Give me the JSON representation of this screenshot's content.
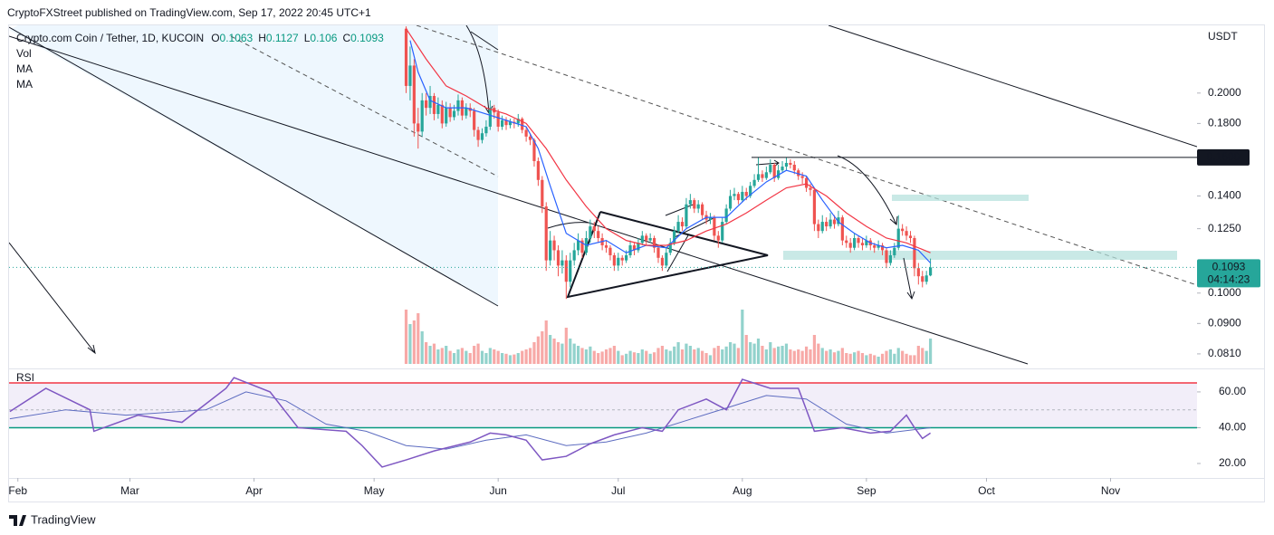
{
  "header": {
    "attribution": "CryptoFXStreet published on TradingView.com, Sep 17, 2022 20:45 UTC+1",
    "footer": "TradingView"
  },
  "chart_data": {
    "type": "candlestick",
    "title": "Crypto.com Coin / Tether, 1D, KUCOIN",
    "ohlc_labels": [
      "O",
      "H",
      "L",
      "C"
    ],
    "currency": "USDT",
    "up_color": "#26a69a",
    "down_color": "#ef5350",
    "open": [
      0.25,
      0.205,
      0.22,
      0.18,
      0.175,
      0.195,
      0.19,
      0.198,
      0.186,
      0.192,
      0.18,
      0.19,
      0.184,
      0.188,
      0.195,
      0.185,
      0.19,
      0.188,
      0.176,
      0.17,
      0.174,
      0.178,
      0.19,
      0.187,
      0.178,
      0.182,
      0.179,
      0.181,
      0.18,
      0.183,
      0.176,
      0.172,
      0.17,
      0.158,
      0.148,
      0.135,
      0.112,
      0.12,
      0.116,
      0.11,
      0.112,
      0.104,
      0.112,
      0.116,
      0.12,
      0.115,
      0.121,
      0.126,
      0.124,
      0.121,
      0.118,
      0.117,
      0.114,
      0.11,
      0.113,
      0.112,
      0.114,
      0.118,
      0.116,
      0.119,
      0.122,
      0.12,
      0.121,
      0.117,
      0.113,
      0.11,
      0.115,
      0.119,
      0.124,
      0.128,
      0.126,
      0.136,
      0.138,
      0.134,
      0.136,
      0.131,
      0.129,
      0.13,
      0.122,
      0.12,
      0.128,
      0.134,
      0.14,
      0.141,
      0.138,
      0.142,
      0.14,
      0.145,
      0.148,
      0.151,
      0.149,
      0.152,
      0.156,
      0.149,
      0.153,
      0.155,
      0.157,
      0.156,
      0.153,
      0.15,
      0.149,
      0.144,
      0.143,
      0.127,
      0.124,
      0.128,
      0.126,
      0.129,
      0.127,
      0.13,
      0.12,
      0.119,
      0.117,
      0.121,
      0.119,
      0.118,
      0.12,
      0.118,
      0.117,
      0.118,
      0.116,
      0.111,
      0.114,
      0.117,
      0.125,
      0.124,
      0.122,
      0.121,
      0.109,
      0.106,
      0.104,
      0.1063
    ],
    "high": [
      0.252,
      0.235,
      0.225,
      0.19,
      0.2,
      0.2,
      0.205,
      0.2,
      0.197,
      0.195,
      0.194,
      0.193,
      0.192,
      0.199,
      0.197,
      0.193,
      0.193,
      0.19,
      0.178,
      0.177,
      0.182,
      0.195,
      0.192,
      0.189,
      0.185,
      0.184,
      0.183,
      0.183,
      0.186,
      0.184,
      0.178,
      0.174,
      0.171,
      0.16,
      0.15,
      0.137,
      0.124,
      0.122,
      0.118,
      0.116,
      0.114,
      0.115,
      0.119,
      0.123,
      0.121,
      0.124,
      0.129,
      0.128,
      0.126,
      0.123,
      0.12,
      0.118,
      0.115,
      0.115,
      0.114,
      0.116,
      0.12,
      0.119,
      0.121,
      0.124,
      0.123,
      0.123,
      0.122,
      0.118,
      0.114,
      0.117,
      0.121,
      0.126,
      0.131,
      0.13,
      0.139,
      0.141,
      0.139,
      0.138,
      0.137,
      0.133,
      0.132,
      0.131,
      0.124,
      0.13,
      0.136,
      0.143,
      0.144,
      0.142,
      0.145,
      0.144,
      0.147,
      0.151,
      0.16,
      0.153,
      0.155,
      0.159,
      0.157,
      0.156,
      0.158,
      0.16,
      0.159,
      0.158,
      0.154,
      0.152,
      0.15,
      0.146,
      0.144,
      0.129,
      0.131,
      0.13,
      0.132,
      0.131,
      0.133,
      0.131,
      0.122,
      0.121,
      0.123,
      0.122,
      0.121,
      0.122,
      0.121,
      0.119,
      0.12,
      0.119,
      0.117,
      0.116,
      0.119,
      0.131,
      0.127,
      0.126,
      0.124,
      0.122,
      0.111,
      0.108,
      0.108,
      0.1127
    ],
    "low": [
      0.2,
      0.195,
      0.172,
      0.165,
      0.172,
      0.185,
      0.186,
      0.182,
      0.183,
      0.177,
      0.178,
      0.181,
      0.182,
      0.185,
      0.182,
      0.183,
      0.184,
      0.172,
      0.166,
      0.168,
      0.172,
      0.176,
      0.183,
      0.175,
      0.176,
      0.176,
      0.177,
      0.177,
      0.178,
      0.174,
      0.169,
      0.167,
      0.155,
      0.145,
      0.132,
      0.108,
      0.11,
      0.112,
      0.106,
      0.107,
      0.098,
      0.102,
      0.11,
      0.114,
      0.113,
      0.114,
      0.119,
      0.121,
      0.119,
      0.116,
      0.115,
      0.112,
      0.108,
      0.108,
      0.11,
      0.111,
      0.113,
      0.114,
      0.115,
      0.118,
      0.118,
      0.119,
      0.115,
      0.111,
      0.108,
      0.109,
      0.114,
      0.118,
      0.123,
      0.124,
      0.125,
      0.134,
      0.132,
      0.132,
      0.129,
      0.127,
      0.127,
      0.12,
      0.117,
      0.119,
      0.127,
      0.133,
      0.138,
      0.136,
      0.137,
      0.138,
      0.139,
      0.144,
      0.147,
      0.147,
      0.148,
      0.151,
      0.147,
      0.148,
      0.152,
      0.153,
      0.154,
      0.151,
      0.148,
      0.146,
      0.142,
      0.14,
      0.124,
      0.121,
      0.123,
      0.124,
      0.125,
      0.125,
      0.126,
      0.118,
      0.117,
      0.115,
      0.116,
      0.117,
      0.116,
      0.117,
      0.116,
      0.115,
      0.116,
      0.114,
      0.109,
      0.11,
      0.113,
      0.116,
      0.122,
      0.12,
      0.119,
      0.106,
      0.103,
      0.102,
      0.103,
      0.106
    ],
    "close": [
      0.205,
      0.22,
      0.18,
      0.175,
      0.195,
      0.19,
      0.198,
      0.186,
      0.192,
      0.18,
      0.19,
      0.184,
      0.188,
      0.195,
      0.185,
      0.19,
      0.188,
      0.176,
      0.17,
      0.174,
      0.178,
      0.19,
      0.187,
      0.178,
      0.182,
      0.179,
      0.181,
      0.18,
      0.183,
      0.176,
      0.172,
      0.17,
      0.158,
      0.148,
      0.135,
      0.112,
      0.12,
      0.116,
      0.11,
      0.112,
      0.104,
      0.112,
      0.116,
      0.12,
      0.115,
      0.121,
      0.126,
      0.124,
      0.121,
      0.118,
      0.117,
      0.114,
      0.11,
      0.113,
      0.112,
      0.114,
      0.118,
      0.116,
      0.119,
      0.122,
      0.12,
      0.121,
      0.117,
      0.113,
      0.11,
      0.115,
      0.119,
      0.124,
      0.128,
      0.126,
      0.136,
      0.138,
      0.134,
      0.136,
      0.131,
      0.129,
      0.13,
      0.122,
      0.12,
      0.128,
      0.134,
      0.14,
      0.141,
      0.138,
      0.142,
      0.14,
      0.145,
      0.148,
      0.151,
      0.149,
      0.152,
      0.156,
      0.149,
      0.153,
      0.155,
      0.157,
      0.156,
      0.153,
      0.15,
      0.149,
      0.144,
      0.143,
      0.127,
      0.124,
      0.128,
      0.126,
      0.129,
      0.127,
      0.13,
      0.12,
      0.119,
      0.117,
      0.121,
      0.119,
      0.118,
      0.12,
      0.118,
      0.117,
      0.118,
      0.116,
      0.111,
      0.114,
      0.117,
      0.125,
      0.124,
      0.122,
      0.121,
      0.109,
      0.106,
      0.104,
      0.1063,
      0.1093
    ],
    "xlim": [
      -99.2,
      197.6
    ],
    "xticks": [
      {
        "value": -97,
        "label": "Feb"
      },
      {
        "value": -69,
        "label": "Mar"
      },
      {
        "value": -38,
        "label": "Apr"
      },
      {
        "value": -8,
        "label": "May"
      },
      {
        "value": 23,
        "label": "Jun"
      },
      {
        "value": 53,
        "label": "Jul"
      },
      {
        "value": 84,
        "label": "Aug"
      },
      {
        "value": 115,
        "label": "Sep"
      },
      {
        "value": 145,
        "label": "Oct"
      },
      {
        "value": 176,
        "label": "Nov"
      }
    ],
    "ylim": [
      0.0775,
      0.2529
    ],
    "log_scale": true,
    "yticks": [
      {
        "value": 0.2,
        "label": "0.2000"
      },
      {
        "value": 0.18,
        "label": "0.1800"
      },
      {
        "value": 0.14,
        "label": "0.1400"
      },
      {
        "value": 0.125,
        "label": "0.1250"
      },
      {
        "value": 0.1,
        "label": "0.1000"
      },
      {
        "value": 0.09,
        "label": "0.0900"
      },
      {
        "value": 0.081,
        "label": "0.0810"
      }
    ],
    "moving_averages": [
      {
        "name": "MA",
        "color": "#2962ff",
        "x": [
          1,
          3,
          6,
          10,
          15,
          20,
          25,
          30,
          33,
          36,
          40,
          45,
          50,
          55,
          60,
          65,
          70,
          75,
          80,
          85,
          90,
          95,
          100,
          104,
          108,
          112,
          116,
          120,
          124,
          128,
          131
        ],
        "values": [
          0.24,
          0.215,
          0.195,
          0.19,
          0.19,
          0.186,
          0.182,
          0.178,
          0.165,
          0.145,
          0.123,
          0.118,
          0.12,
          0.115,
          0.118,
          0.117,
          0.125,
          0.13,
          0.13,
          0.139,
          0.147,
          0.153,
          0.15,
          0.138,
          0.128,
          0.123,
          0.119,
          0.117,
          0.118,
          0.116,
          0.111
        ]
      },
      {
        "name": "MA",
        "color": "#f23645",
        "x": [
          0,
          5,
          10,
          15,
          20,
          25,
          30,
          35,
          40,
          45,
          50,
          55,
          60,
          65,
          70,
          75,
          80,
          85,
          90,
          95,
          100,
          105,
          110,
          115,
          120,
          125,
          131
        ],
        "values": [
          0.25,
          0.225,
          0.205,
          0.198,
          0.19,
          0.186,
          0.18,
          0.165,
          0.148,
          0.135,
          0.125,
          0.12,
          0.118,
          0.118,
          0.12,
          0.124,
          0.127,
          0.132,
          0.138,
          0.144,
          0.146,
          0.14,
          0.132,
          0.126,
          0.121,
          0.119,
          0.115
        ]
      }
    ],
    "price_line": {
      "value": 0.16,
      "label": "0.1600"
    },
    "countdown": "04:14:23",
    "volume": {
      "name": "Vol",
      "vlim": [
        0,
        100
      ],
      "values": [
        75,
        55,
        60,
        70,
        45,
        30,
        25,
        28,
        20,
        22,
        25,
        18,
        15,
        20,
        22,
        18,
        15,
        25,
        28,
        18,
        15,
        22,
        20,
        18,
        15,
        14,
        12,
        13,
        15,
        18,
        20,
        22,
        30,
        38,
        45,
        60,
        40,
        35,
        30,
        28,
        50,
        35,
        28,
        25,
        22,
        20,
        24,
        18,
        15,
        17,
        20,
        22,
        25,
        18,
        12,
        14,
        18,
        16,
        15,
        20,
        18,
        14,
        16,
        22,
        25,
        20,
        18,
        24,
        30,
        20,
        28,
        25,
        20,
        22,
        18,
        15,
        12,
        22,
        25,
        20,
        24,
        30,
        28,
        22,
        75,
        40,
        30,
        28,
        35,
        25,
        20,
        30,
        22,
        24,
        25,
        28,
        20,
        18,
        20,
        18,
        24,
        20,
        40,
        28,
        22,
        18,
        20,
        16,
        18,
        22,
        15,
        14,
        16,
        18,
        15,
        12,
        14,
        12,
        10,
        14,
        18,
        20,
        14,
        22,
        18,
        14,
        12,
        12,
        25,
        22,
        18,
        35
      ]
    },
    "rsi": {
      "name": "RSI",
      "color": "#7e57c2",
      "x": [
        -99,
        -90,
        -79,
        -78,
        -67,
        -56,
        -45,
        -43,
        -34,
        -27,
        -15,
        -11,
        -6,
        0,
        7,
        16,
        21,
        25,
        30,
        34,
        40,
        46,
        52,
        59,
        64,
        68,
        75,
        80,
        84,
        91,
        98,
        102,
        109,
        116,
        121,
        125,
        127,
        129,
        131
      ],
      "values": [
        49,
        62,
        50,
        38,
        47,
        43,
        62,
        68,
        60,
        40,
        38,
        30,
        18,
        22,
        27,
        32,
        37,
        36,
        33,
        22,
        24,
        31,
        36,
        40,
        38,
        50,
        56,
        50,
        67,
        62,
        62,
        38,
        40,
        37,
        38,
        47,
        40,
        34,
        37
      ],
      "ma_x": [
        -99,
        -85,
        -70,
        -50,
        -40,
        -30,
        -20,
        -10,
        0,
        10,
        20,
        30,
        40,
        50,
        60,
        70,
        80,
        90,
        100,
        110,
        120,
        131
      ],
      "ma_values": [
        45,
        50,
        47,
        50,
        60,
        55,
        42,
        38,
        30,
        28,
        33,
        36,
        30,
        32,
        37,
        44,
        51,
        58,
        56,
        42,
        37,
        40
      ],
      "ylim": [
        11.9,
        71.6
      ],
      "yticks": [
        {
          "value": 60,
          "label": "60.00"
        },
        {
          "value": 40,
          "label": "40.00"
        },
        {
          "value": 20,
          "label": "20.00"
        }
      ],
      "upper": 65,
      "middle": 50,
      "lower": 40
    }
  }
}
